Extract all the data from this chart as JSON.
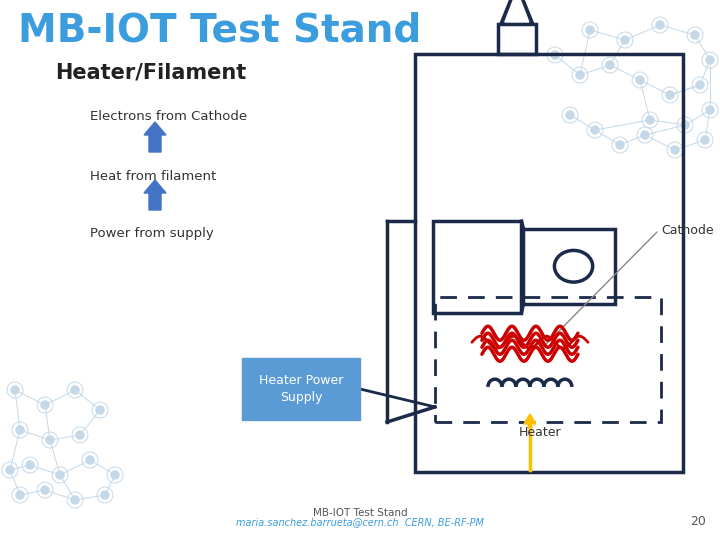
{
  "title": "MB-IOT Test Stand",
  "subtitle": "Heater/Filament",
  "label_electrons": "Electrons from Cathode",
  "label_heat": "Heat from filament",
  "label_power": "Power from supply",
  "label_cathode": "Cathode",
  "label_heater": "Heater",
  "label_heater_box": "Heater Power\nSupply",
  "footer1": "MB-IOT Test Stand",
  "footer2": "maria.sanchez.barrueta@cern.ch  CERN, BE-RF-PM",
  "page_num": "20",
  "title_color": "#3B9DDD",
  "subtitle_color": "#222222",
  "label_color": "#333333",
  "navy": "#1B2A4A",
  "arrow_blue": "#4472C4",
  "arrow_yellow": "#FFC000",
  "heater_red": "#CC0000",
  "heater_box_bg": "#5B9BD5",
  "bg_color": "#ffffff",
  "network_color": "#C5D8E8"
}
